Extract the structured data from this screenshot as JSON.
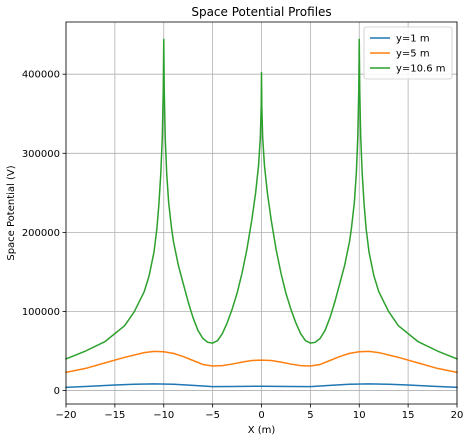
{
  "chart_data": {
    "type": "line",
    "title": "Space Potential Profiles",
    "xlabel": "X (m)",
    "ylabel": "Space Potential (V)",
    "xlim": [
      -20,
      20
    ],
    "ylim": [
      -17000,
      466000
    ],
    "xticks": [
      -20,
      -15,
      -10,
      -5,
      0,
      5,
      10,
      15,
      20
    ],
    "xtick_labels": [
      "−20",
      "−15",
      "−10",
      "−5",
      "0",
      "5",
      "10",
      "15",
      "20"
    ],
    "yticks": [
      0,
      100000,
      200000,
      300000,
      400000
    ],
    "ytick_labels": [
      "0",
      "100000",
      "200000",
      "300000",
      "400000"
    ],
    "grid": true,
    "legend_position": "top-right",
    "series": [
      {
        "name": "y=1 m",
        "color": "#1f77b4",
        "x": [
          -20,
          -17.5,
          -15,
          -13,
          -11,
          -9,
          -7,
          -5,
          -3,
          0,
          3,
          5,
          7,
          9,
          11,
          13,
          15,
          17.5,
          20
        ],
        "y": [
          4000,
          5500,
          7000,
          8000,
          8500,
          8000,
          6500,
          5000,
          5200,
          5500,
          5200,
          5000,
          6500,
          8000,
          8500,
          8000,
          7000,
          5500,
          4000
        ]
      },
      {
        "name": "y=5 m",
        "color": "#ff7f0e",
        "x": [
          -20,
          -18,
          -16,
          -14,
          -12,
          -11,
          -10,
          -9,
          -8,
          -7,
          -6,
          -5,
          -4,
          -3,
          -2,
          -1,
          0,
          1,
          2,
          3,
          4,
          5,
          6,
          7,
          8,
          9,
          10,
          11,
          12,
          14,
          16,
          18,
          20
        ],
        "y": [
          23000,
          28000,
          35000,
          42000,
          48000,
          49500,
          49000,
          47000,
          43000,
          38000,
          33000,
          31000,
          31500,
          33500,
          36000,
          38000,
          38500,
          38000,
          36000,
          33500,
          31500,
          31000,
          33000,
          38000,
          43000,
          47000,
          49000,
          49500,
          48000,
          42000,
          35000,
          28000,
          23000
        ]
      },
      {
        "name": "y=10.6 m",
        "color": "#2ca02c",
        "x": [
          -20,
          -18,
          -16,
          -14,
          -13,
          -12,
          -11.5,
          -11,
          -10.7,
          -10.5,
          -10.3,
          -10.15,
          -10.05,
          -10,
          -9.95,
          -9.85,
          -9.7,
          -9.5,
          -9.2,
          -9,
          -8.5,
          -8,
          -7.5,
          -7,
          -6.5,
          -6,
          -5.5,
          -5,
          -4.5,
          -4,
          -3.5,
          -3,
          -2.5,
          -2,
          -1.5,
          -1,
          -0.6,
          -0.3,
          -0.12,
          -0.03,
          0,
          0.03,
          0.12,
          0.3,
          0.6,
          1,
          1.5,
          2,
          2.5,
          3,
          3.5,
          4,
          4.5,
          5,
          5.5,
          6,
          6.5,
          7,
          7.5,
          8,
          8.5,
          9,
          9.2,
          9.5,
          9.7,
          9.85,
          9.95,
          10,
          10.05,
          10.15,
          10.3,
          10.5,
          10.7,
          11,
          11.5,
          12,
          13,
          14,
          16,
          18,
          20
        ],
        "y": [
          40000,
          50000,
          62000,
          82000,
          100000,
          125000,
          145000,
          175000,
          205000,
          235000,
          275000,
          320000,
          380000,
          444000,
          380000,
          320000,
          275000,
          238000,
          205000,
          188000,
          158000,
          135000,
          112000,
          92000,
          76000,
          66000,
          61000,
          60000,
          63000,
          72000,
          86000,
          103000,
          123000,
          148000,
          178000,
          215000,
          250000,
          285000,
          320000,
          360000,
          402000,
          360000,
          320000,
          285000,
          250000,
          215000,
          178000,
          148000,
          123000,
          103000,
          86000,
          72000,
          63000,
          60000,
          61000,
          66000,
          76000,
          92000,
          112000,
          135000,
          158000,
          188000,
          205000,
          238000,
          275000,
          320000,
          380000,
          444000,
          380000,
          320000,
          275000,
          235000,
          205000,
          175000,
          145000,
          125000,
          100000,
          82000,
          62000,
          50000,
          40000
        ]
      }
    ]
  }
}
